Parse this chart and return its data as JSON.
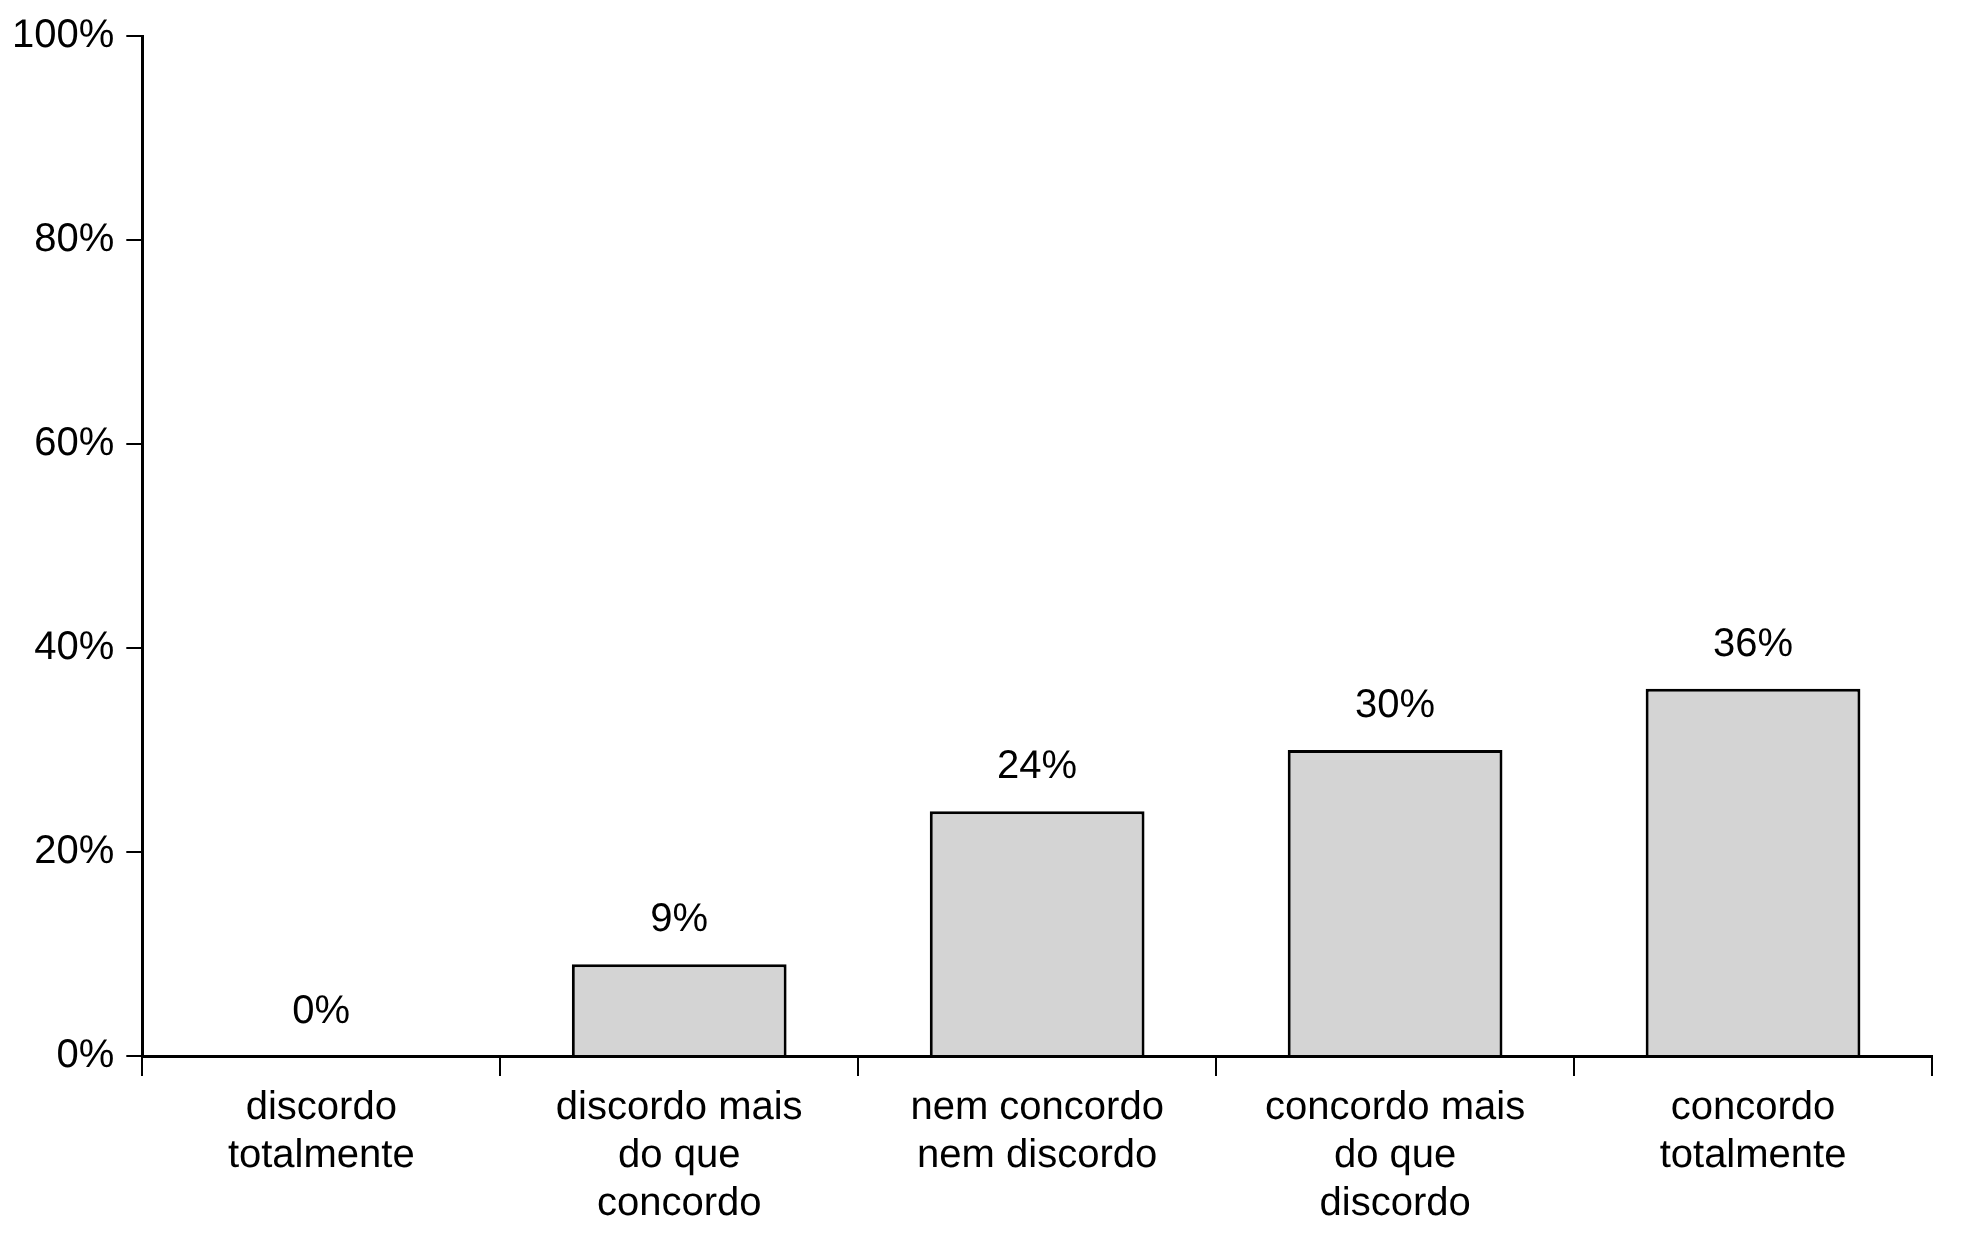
{
  "chart_data": {
    "type": "bar",
    "categories": [
      "discordo\ntotalmente",
      "discordo mais\ndo que\nconcordo",
      "nem concordo\nnem discordo",
      "concordo mais\ndo que\ndiscordo",
      "concordo\ntotalmente"
    ],
    "values": [
      0,
      9,
      24,
      30,
      36
    ],
    "color": "#d4d4d4",
    "ylim": [
      0,
      100
    ],
    "yticks": [
      {
        "value": 0,
        "label": "0%"
      },
      {
        "value": 20,
        "label": "20%"
      },
      {
        "value": 40,
        "label": "40%"
      },
      {
        "value": 60,
        "label": "60%"
      },
      {
        "value": 80,
        "label": "80%"
      },
      {
        "value": 100,
        "label": "100%"
      }
    ],
    "value_labels": [
      "0%",
      "9%",
      "24%",
      "30%",
      "36%"
    ],
    "grid": false,
    "legend": false
  }
}
